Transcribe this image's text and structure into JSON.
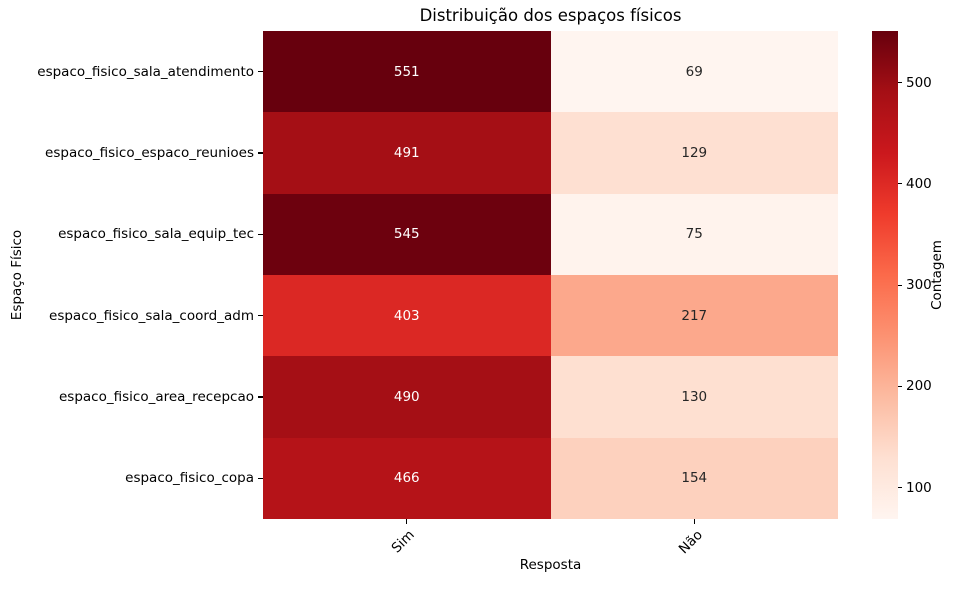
{
  "figure": {
    "background": "#ffffff",
    "text_color": "#000000"
  },
  "chart_data": {
    "type": "heatmap",
    "title": "Distribuição dos espaços físicos",
    "xlabel": "Resposta",
    "ylabel": "Espaço Físico",
    "columns": [
      "Sim",
      "Não"
    ],
    "rows": [
      "espaco_fisico_sala_atendimento",
      "espaco_fisico_espaco_reunioes",
      "espaco_fisico_sala_equip_tec",
      "espaco_fisico_sala_coord_adm",
      "espaco_fisico_area_recepcao",
      "espaco_fisico_copa"
    ],
    "values": [
      [
        551,
        69
      ],
      [
        491,
        129
      ],
      [
        545,
        75
      ],
      [
        403,
        217
      ],
      [
        490,
        130
      ],
      [
        466,
        154
      ]
    ],
    "vmin": 69,
    "vmax": 551,
    "colormap": {
      "name": "Reds",
      "stops": [
        "#fff5f0",
        "#fee0d2",
        "#fcbba1",
        "#fc9272",
        "#fb6a4a",
        "#ef3b2c",
        "#cb181d",
        "#a50f15",
        "#67000d"
      ]
    },
    "colorbar": {
      "label": "Contagem",
      "ticks": [
        100,
        200,
        300,
        400,
        500
      ]
    },
    "annotation_text_colors": {
      "light": "#ffffff",
      "dark": "#262626"
    },
    "legend": "colorbar-right",
    "grid": false
  }
}
